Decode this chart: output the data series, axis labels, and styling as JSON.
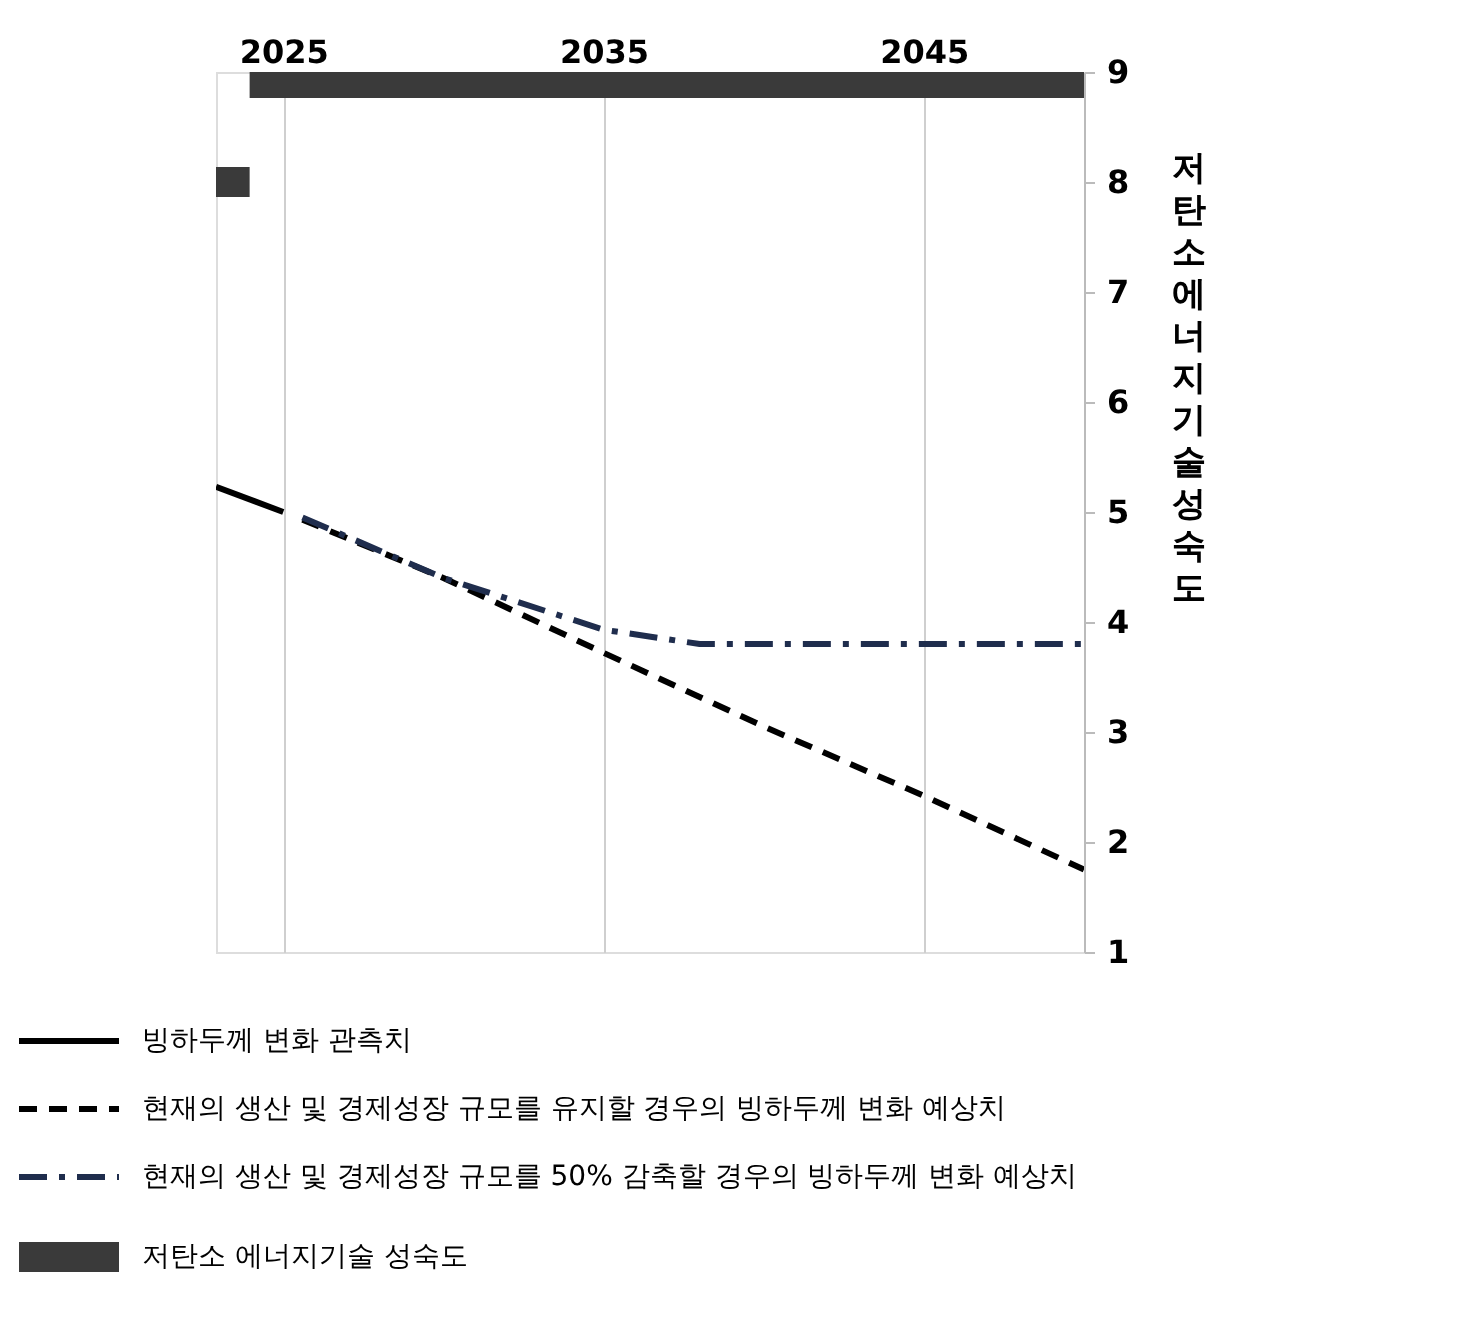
{
  "chart_data": {
    "type": "line",
    "ylabel": "저탄소 에너지기술 성숙도",
    "xlim": [
      2022.9,
      2050
    ],
    "xticks": [
      2025,
      2035,
      2045
    ],
    "ylim": [
      1,
      9
    ],
    "yticks": [
      1,
      2,
      3,
      4,
      5,
      6,
      7,
      8,
      9
    ],
    "grid": "x",
    "legend": "bottom",
    "series": [
      {
        "name": "빙하두께 변화 관측치",
        "line_style": "solid",
        "color": "#000000",
        "x": [
          2022.9,
          2025
        ],
        "values": [
          5.23,
          5.0
        ]
      },
      {
        "name": "현재의 생산 및 경제성장 규모를 유지할 경우의 빙하두께 변화 예상치",
        "line_style": "dashed",
        "color": "#000000",
        "x": [
          2025.6,
          2030,
          2035,
          2040,
          2045,
          2050
        ],
        "values": [
          4.93,
          4.4,
          3.72,
          3.05,
          2.42,
          1.75
        ]
      },
      {
        "name": "현재의 생산 및 경제성장 규모를 50% 감축할 경우의 빙하두께 변화 예상치",
        "line_style": "dashdot",
        "color": "#1f2d4d",
        "x": [
          2025.6,
          2030,
          2035,
          2038,
          2044,
          2050
        ],
        "values": [
          4.95,
          4.4,
          3.93,
          3.8,
          3.8,
          3.8
        ]
      },
      {
        "name": "저탄소 에너지기술 성숙도",
        "line_style": "solid",
        "color": "#3a3a3a",
        "x": [
          2022.9,
          2023.95,
          null,
          2023.95,
          2050
        ],
        "values": [
          8,
          8,
          null,
          8.9,
          8.9
        ]
      }
    ]
  }
}
